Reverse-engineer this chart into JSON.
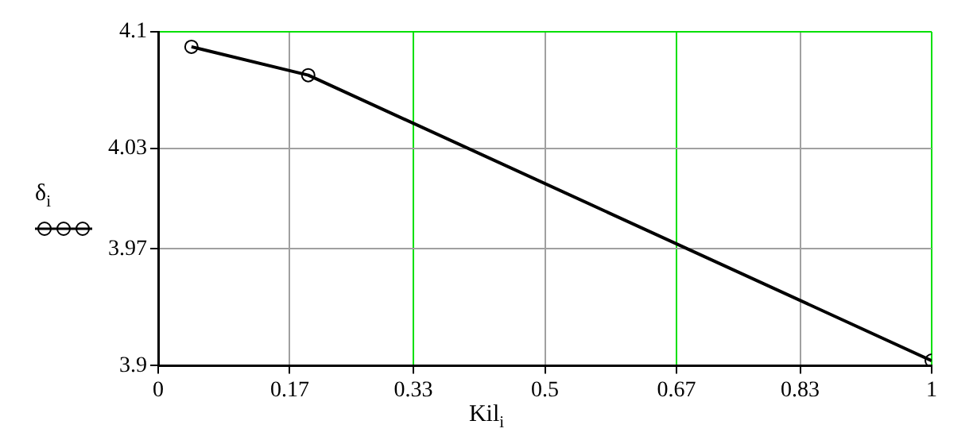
{
  "chart_data": {
    "type": "line",
    "xlabel": "Kil$_{i}$",
    "ylabel": "δ$_{i}$",
    "x": [
      0.043,
      0.194,
      1
    ],
    "series": [
      {
        "color": "#000000",
        "values": [
          4.091,
          4.074,
          3.903
        ]
      }
    ],
    "xlim": [
      0,
      1
    ],
    "xticks": [
      0,
      0.17,
      0.33,
      0.5,
      0.67,
      0.83,
      1
    ],
    "ylim": [
      3.9,
      4.1
    ],
    "yticks": [
      3.9,
      3.97,
      4.03,
      4.1
    ],
    "grid": true,
    "marker": "circle",
    "line_style": "solid",
    "legend": false
  }
}
